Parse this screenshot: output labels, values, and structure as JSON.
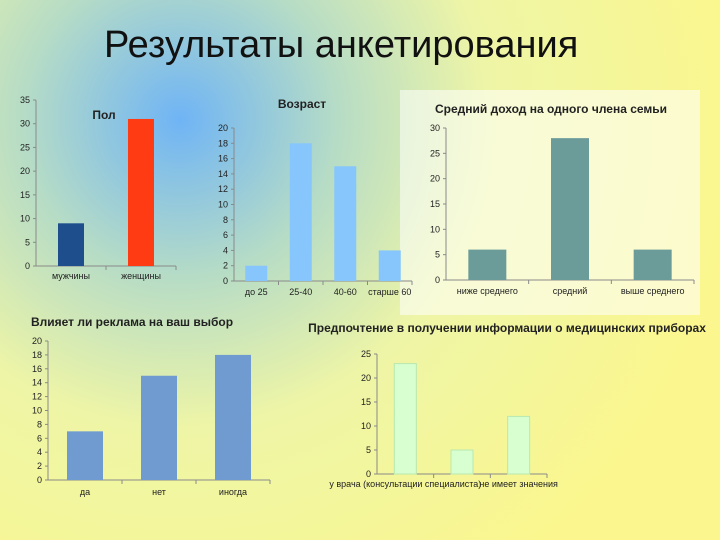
{
  "page": {
    "title": "Результаты анкетирования"
  },
  "chart_data": [
    {
      "type": "bar",
      "title": "Пол",
      "categories": [
        "мужчины",
        "женщины"
      ],
      "values": [
        9,
        31
      ],
      "colors": [
        "#1f4e8c",
        "#ff3b14"
      ],
      "ylim": [
        0,
        35
      ],
      "yticks": [
        0,
        5,
        10,
        15,
        20,
        25,
        30,
        35
      ],
      "grid": false
    },
    {
      "type": "bar",
      "title": "Возраст",
      "categories": [
        "до 25",
        "25-40",
        "40-60",
        "старше 60"
      ],
      "values": [
        2,
        18,
        15,
        4
      ],
      "colors": [
        "#86c6fc"
      ],
      "ylim": [
        0,
        20
      ],
      "yticks": [
        0,
        2,
        4,
        6,
        8,
        10,
        12,
        14,
        16,
        18,
        20
      ],
      "grid": false
    },
    {
      "type": "bar",
      "title": "Средний доход на одного члена семьи",
      "categories": [
        "ниже среднего",
        "средний",
        "выше среднего"
      ],
      "values": [
        6,
        28,
        6
      ],
      "colors": [
        "#6b9c9a"
      ],
      "ylim": [
        0,
        30
      ],
      "yticks": [
        0,
        5,
        10,
        15,
        20,
        25,
        30
      ],
      "grid": false
    },
    {
      "type": "bar",
      "title": "Влияет ли реклама на ваш выбор",
      "categories": [
        "да",
        "нет",
        "иногда"
      ],
      "values": [
        7,
        15,
        18
      ],
      "colors": [
        "#6f9bd1"
      ],
      "ylim": [
        0,
        20
      ],
      "yticks": [
        0,
        2,
        4,
        6,
        8,
        10,
        12,
        14,
        16,
        18,
        20
      ],
      "grid": false
    },
    {
      "type": "bar",
      "title": "Предпочтение в получении информации о медицинских приборах",
      "categories": [
        "у врача (консультации специалиста)",
        "",
        "не имеет значения"
      ],
      "values": [
        23,
        5,
        12
      ],
      "colors": [
        "#d8ffd0"
      ],
      "ylim": [
        0,
        25
      ],
      "yticks": [
        0,
        5,
        10,
        15,
        20,
        25
      ],
      "grid": false
    }
  ]
}
